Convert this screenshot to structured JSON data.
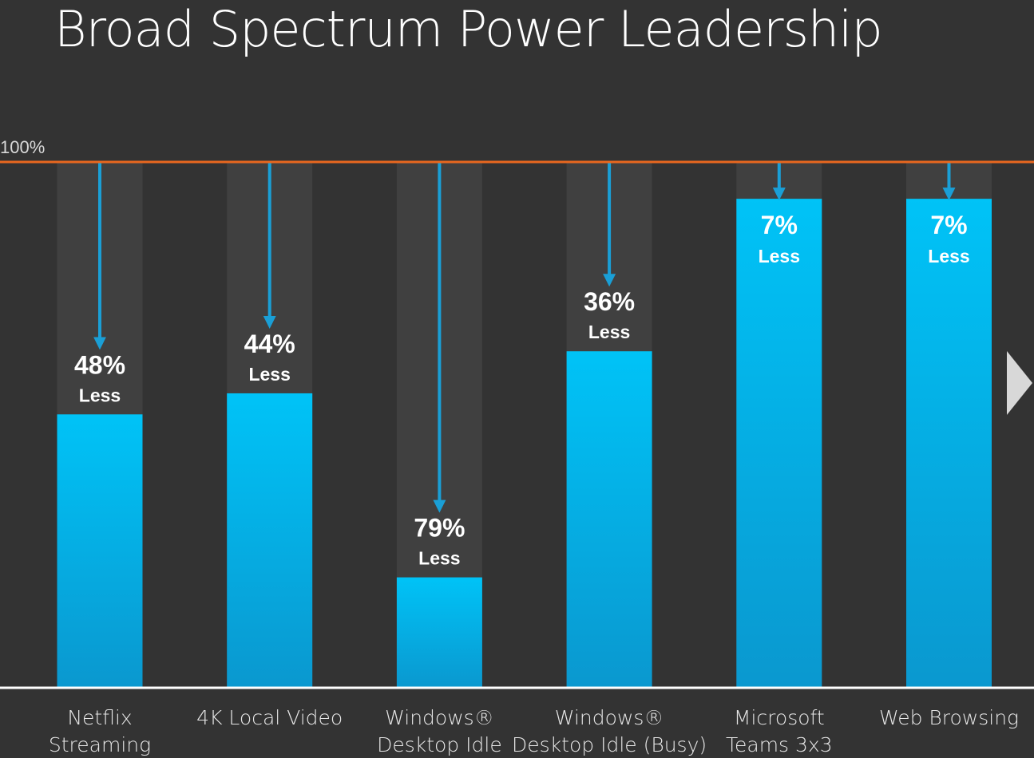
{
  "title": "Broad Spectrum Power Leadership",
  "chart_data": {
    "type": "bar",
    "title": "Broad Spectrum Power Leadership",
    "reference_label": "100%",
    "ylim": [
      0,
      100
    ],
    "categories": [
      [
        "Netflix",
        "Streaming"
      ],
      [
        "4K Local Video"
      ],
      [
        "Windows®",
        "Desktop Idle"
      ],
      [
        "Windows®",
        "Desktop Idle (Busy)"
      ],
      [
        "Microsoft",
        "Teams 3x3"
      ],
      [
        "Web Browsing"
      ]
    ],
    "values": [
      52,
      56,
      21,
      64,
      93,
      93
    ],
    "reduction_percent": [
      48,
      44,
      79,
      36,
      7,
      7
    ],
    "annotations": [
      {
        "pct": "48%",
        "word": "Less"
      },
      {
        "pct": "44%",
        "word": "Less"
      },
      {
        "pct": "79%",
        "word": "Less"
      },
      {
        "pct": "36%",
        "word": "Less"
      },
      {
        "pct": "7%",
        "word": "Less"
      },
      {
        "pct": "7%",
        "word": "Less"
      }
    ],
    "colors": {
      "background": "#333333",
      "column_track": "#404040",
      "bar_top": "#00c3f7",
      "bar_bottom": "#0a98cf",
      "arrow": "#1a9fd6",
      "reference_line": "#e8671f",
      "baseline": "#ffffff",
      "label": "#e6e6e6",
      "annotation": "#ffffff"
    }
  },
  "nav": {
    "next_icon": "chevron-right-icon"
  }
}
